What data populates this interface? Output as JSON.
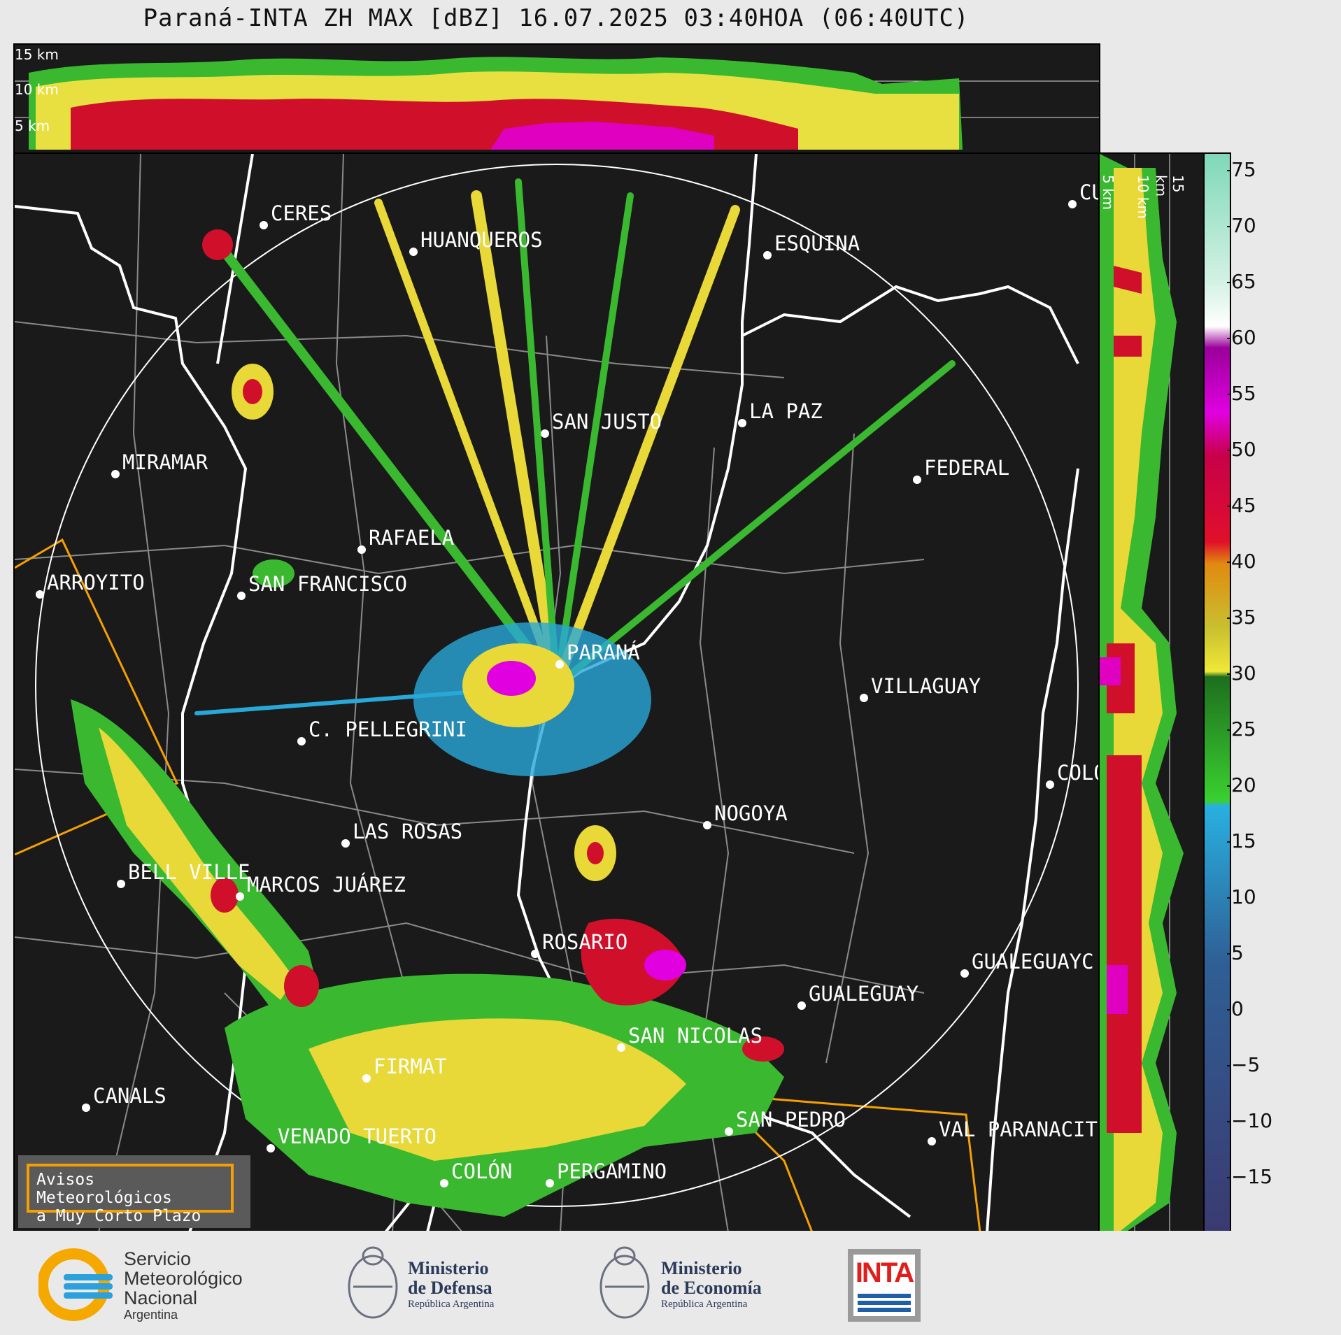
{
  "title": "Paraná-INTA ZH MAX [dBZ] 16.07.2025 03:40HOA (06:40UTC)",
  "top_profile": {
    "height_labels": [
      "15 km",
      "10 km",
      "5 km"
    ]
  },
  "side_profile": {
    "height_labels": [
      "5 km",
      "10 km",
      "15 km"
    ]
  },
  "colorbar": {
    "unit": "dBZ",
    "ticks": [
      "75",
      "70",
      "65",
      "60",
      "55",
      "50",
      "45",
      "40",
      "35",
      "30",
      "25",
      "20",
      "15",
      "10",
      "5",
      "0",
      "−5",
      "−10",
      "−15"
    ],
    "colors": {
      "teal_high": "#7fd8b8",
      "white": "#ffffff",
      "magenta": "#e000e0",
      "red": "#d0001c",
      "orange": "#e08a10",
      "yellow": "#f0e838",
      "green": "#3ad030",
      "cyan": "#28a8d8",
      "blue": "#2f5f95",
      "navy": "#3a3a70"
    }
  },
  "cities": [
    {
      "name": "CERES"
    },
    {
      "name": "HUANQUEROS"
    },
    {
      "name": "ESQUINA"
    },
    {
      "name": "CU"
    },
    {
      "name": "SAN JUSTO"
    },
    {
      "name": "LA PAZ"
    },
    {
      "name": "MIRAMAR"
    },
    {
      "name": "FEDERAL"
    },
    {
      "name": "RAFAELA"
    },
    {
      "name": "ARROYITO"
    },
    {
      "name": "SAN FRANCISCO"
    },
    {
      "name": "PARANÁ"
    },
    {
      "name": "VILLAGUAY"
    },
    {
      "name": "C. PELLEGRINI"
    },
    {
      "name": "COLÓ"
    },
    {
      "name": "NOGOYA"
    },
    {
      "name": "LAS ROSAS"
    },
    {
      "name": "BELL VILLE"
    },
    {
      "name": "MARCOS JUÁREZ"
    },
    {
      "name": "ROSARIO"
    },
    {
      "name": "GUALEGUAYC"
    },
    {
      "name": "GUALEGUAY"
    },
    {
      "name": "SAN NICOLAS"
    },
    {
      "name": "FIRMAT"
    },
    {
      "name": "CANALS"
    },
    {
      "name": "SAN PEDRO"
    },
    {
      "name": "VENADO TUERTO"
    },
    {
      "name": "VAL PARANACIT"
    },
    {
      "name": "COLÓN"
    },
    {
      "name": "PERGAMINO"
    }
  ],
  "legend": {
    "line1": "Avisos Meteorológicos",
    "line2": "a Muy Corto Plazo"
  },
  "footer": {
    "smn": {
      "line1": "Servicio",
      "line2": "Meteorológico",
      "line3": "Nacional",
      "line4": "Argentina"
    },
    "defensa": {
      "line1": "Ministerio",
      "line2": "de Defensa",
      "line3": "República Argentina"
    },
    "economia": {
      "line1": "Ministerio",
      "line2": "de Economía",
      "line3": "República Argentina"
    },
    "inta": {
      "text": "INTA"
    }
  }
}
